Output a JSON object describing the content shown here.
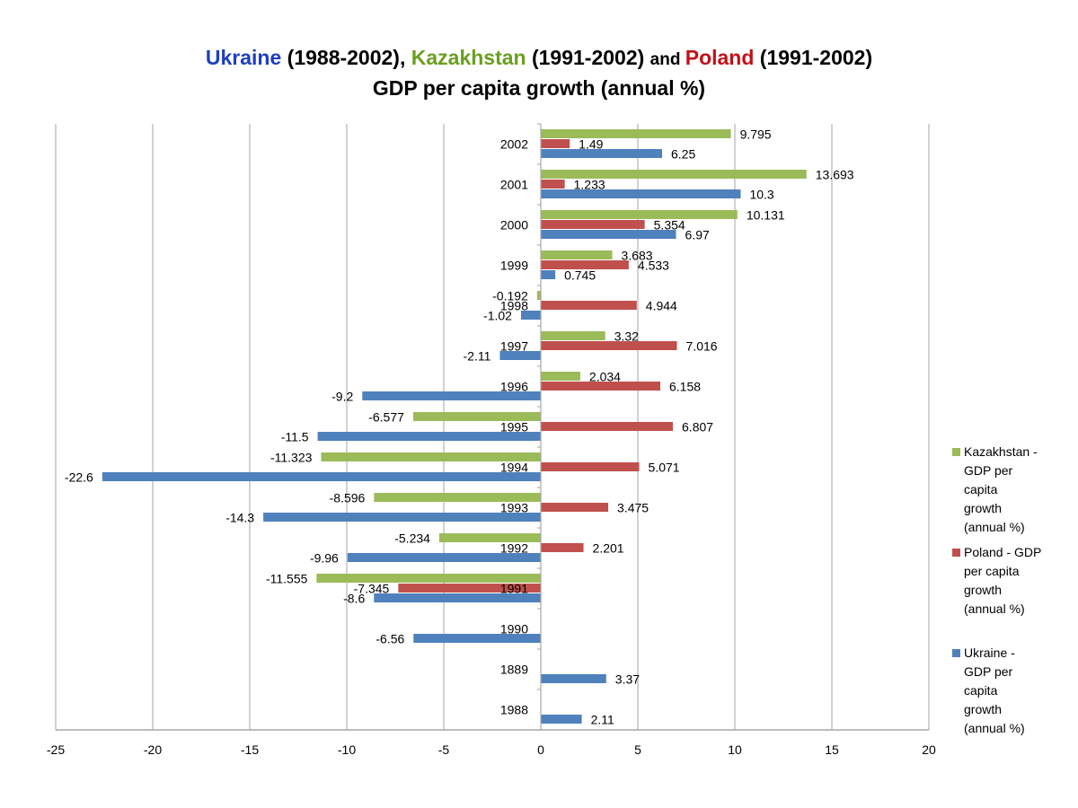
{
  "chart_data": {
    "type": "bar",
    "orientation": "horizontal",
    "title_parts": [
      {
        "text": "Ukraine",
        "color": "#1f3fbf"
      },
      {
        "text": " (1988-2002), ",
        "color": "#000000"
      },
      {
        "text": "Kazakhstan",
        "color": "#6a9f1f"
      },
      {
        "text": " (1991-2002) ",
        "color": "#000000"
      },
      {
        "text": "and ",
        "color": "#000000",
        "small": true
      },
      {
        "text": "Poland",
        "color": "#c0111a"
      },
      {
        "text": " (1991-2002)",
        "color": "#000000"
      }
    ],
    "subtitle": "GDP per capita growth (annual %)",
    "xlabel": "",
    "ylabel": "",
    "xlim": [
      -25,
      20
    ],
    "x_ticks": [
      -25,
      -20,
      -15,
      -10,
      -5,
      0,
      5,
      10,
      15,
      20
    ],
    "grid": true,
    "legend_position": "right",
    "categories": [
      "1988",
      "1889",
      "1990",
      "1991",
      "1992",
      "1993",
      "1994",
      "1995",
      "1996",
      "1997",
      "1998",
      "1999",
      "2000",
      "2001",
      "2002"
    ],
    "series": [
      {
        "name": "Ukraine - GDP per capita growth (annual %)",
        "color": "#4f81bd",
        "values": [
          2.11,
          3.37,
          -6.56,
          -8.6,
          -9.96,
          -14.3,
          -22.6,
          -11.5,
          -9.2,
          -2.11,
          -1.02,
          0.745,
          6.97,
          10.3,
          6.25
        ],
        "labels": [
          "2.11",
          "3.37",
          "-6.56",
          "-8.6",
          "-9.96",
          "-14.3",
          "-22.6",
          "-11.5",
          "-9.2",
          "-2.11",
          "-1.02",
          "0.745",
          "6.97",
          "10.3",
          "6.25"
        ]
      },
      {
        "name": "Poland - GDP per capita growth (annual %)",
        "color": "#c0504d",
        "values": [
          null,
          null,
          null,
          -7.345,
          2.201,
          3.475,
          5.071,
          6.807,
          6.158,
          7.016,
          4.944,
          4.533,
          5.354,
          1.233,
          1.49
        ],
        "labels": [
          "",
          "",
          "",
          "-7.345",
          "2.201",
          "3.475",
          "5.071",
          "6.807",
          "6.158",
          "7.016",
          "4.944",
          "4.533",
          "5.354",
          "1.233",
          "1.49"
        ]
      },
      {
        "name": "Kazakhstan - GDP per capita growth (annual %)",
        "color": "#9bbb59",
        "values": [
          null,
          null,
          null,
          -11.555,
          -5.234,
          -8.596,
          -11.323,
          -6.577,
          2.034,
          3.32,
          -0.192,
          3.683,
          10.131,
          13.693,
          9.795
        ],
        "labels": [
          "",
          "",
          "",
          "-11.555",
          "-5.234",
          "-8.596",
          "-11.323",
          "-6.577",
          "2.034",
          "3.32",
          "-0.192",
          "3.683",
          "10.131",
          "13.693",
          "9.795"
        ]
      }
    ]
  },
  "legend": {
    "items": [
      {
        "label": "Kazakhstan - GDP per capita growth (annual %)",
        "lines": [
          "Kazakhstan -",
          "GDP per",
          "capita",
          "growth",
          "(annual %)"
        ],
        "color": "#9bbb59"
      },
      {
        "label": "Poland - GDP per capita growth (annual %)",
        "lines": [
          "Poland - GDP",
          "per capita",
          "growth",
          "(annual %)"
        ],
        "color": "#c0504d"
      },
      {
        "label": "Ukraine - GDP per capita growth (annual %)",
        "lines": [
          "Ukraine -",
          "GDP per",
          "capita",
          "growth",
          "(annual %)"
        ],
        "color": "#4f81bd"
      }
    ]
  }
}
